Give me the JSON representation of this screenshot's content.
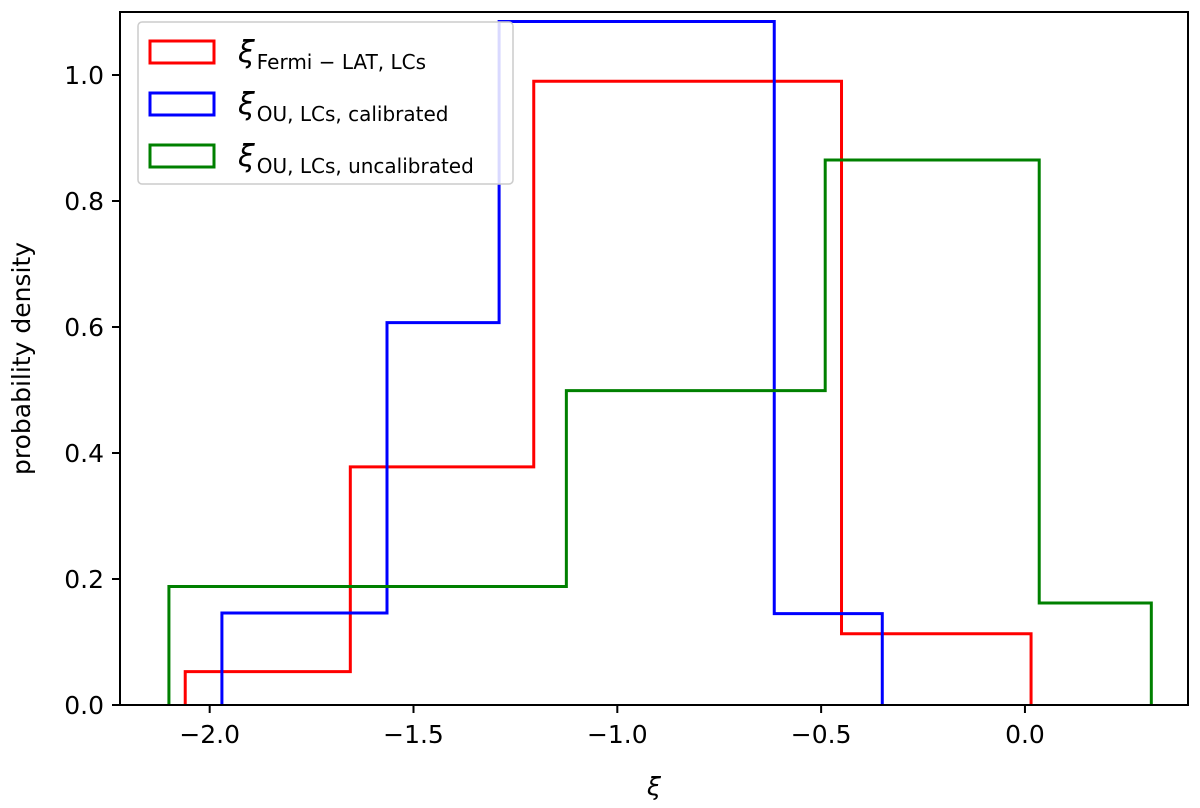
{
  "chart_data": {
    "type": "histogram-step",
    "xlabel": "ξ",
    "ylabel": "probability density",
    "xlim": [
      -2.22,
      0.4
    ],
    "ylim": [
      0,
      1.1
    ],
    "xticks": [
      -2.0,
      -1.5,
      -1.0,
      -0.5,
      0.0
    ],
    "xtick_labels": [
      "−2.0",
      "−1.5",
      "−1.0",
      "−0.5",
      "0.0"
    ],
    "yticks": [
      0.0,
      0.2,
      0.4,
      0.6,
      0.8,
      1.0
    ],
    "ytick_labels": [
      "0.0",
      "0.2",
      "0.4",
      "0.6",
      "0.8",
      "1.0"
    ],
    "grid": false,
    "legend_position": "top-left",
    "series": [
      {
        "name": "ξFermi − LAT, LCs",
        "symbol": "ξ",
        "subscript": "Fermi − LAT, LCs",
        "color": "#ff0000",
        "edges": [
          -2.06,
          -1.655,
          -1.205,
          -0.45,
          0.015
        ],
        "values": [
          0.053,
          0.378,
          0.99,
          0.113
        ]
      },
      {
        "name": "ξOU, LCs, calibrated",
        "symbol": "ξ",
        "subscript": "OU, LCs, calibrated",
        "color": "#0000ff",
        "edges": [
          -1.97,
          -1.565,
          -1.29,
          -0.615,
          -0.35
        ],
        "values": [
          0.146,
          0.607,
          1.085,
          0.145
        ]
      },
      {
        "name": "ξOU, LCs, uncalibrated",
        "symbol": "ξ",
        "subscript": "OU, LCs, uncalibrated",
        "color": "#008000",
        "edges": [
          -2.1,
          -1.125,
          -0.49,
          0.035,
          0.31
        ],
        "values": [
          0.188,
          0.499,
          0.865,
          0.162
        ]
      }
    ]
  }
}
